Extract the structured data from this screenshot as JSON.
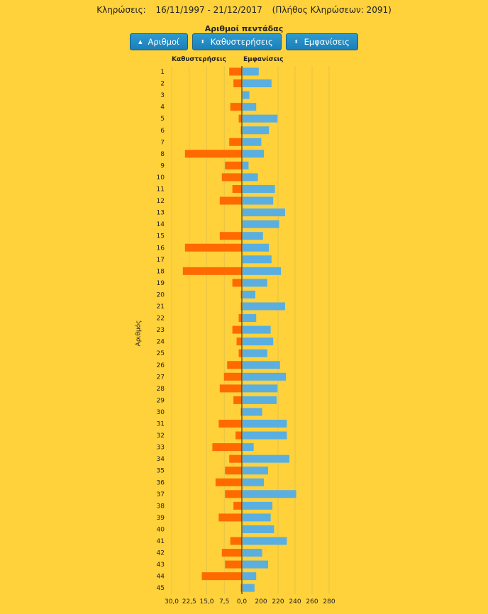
{
  "header": {
    "label": "Κληρώσεις:",
    "range": "16/11/1997 - 21/12/2017",
    "count": "(Πλήθος Κληρώσεων: 2091)"
  },
  "subtitle": "Αριθμοί πεντάδας",
  "buttons": [
    {
      "label": "Αριθμοί",
      "icon": "sort-up-icon"
    },
    {
      "label": "Καθυστερήσεις",
      "icon": "sort-both-icon"
    },
    {
      "label": "Εμφανίσεις",
      "icon": "sort-both-icon"
    }
  ],
  "colors": {
    "delay": "#FF6A00",
    "appearance": "#5AAFE0",
    "background": "#FFD13B"
  },
  "chart_data": {
    "type": "bar",
    "orientation": "horizontal",
    "ylabel": "Αριθμός",
    "series": [
      {
        "name": "Καθυστερήσεις",
        "values": [
          6,
          4,
          0,
          5.5,
          1.5,
          0.5,
          6,
          27,
          8,
          9.5,
          4.5,
          10.5,
          0,
          0,
          10.5,
          27,
          0,
          28,
          4.5,
          0.5,
          0.5,
          1.5,
          4.5,
          2.5,
          1.5,
          7,
          8.5,
          10.5,
          4,
          0.5,
          11,
          3,
          14,
          6,
          8,
          12.5,
          8,
          4,
          11,
          0,
          5.5,
          9.5,
          8,
          19,
          0.5
        ]
      },
      {
        "name": "Εμφανίσεις",
        "values": [
          219,
          234,
          208,
          216,
          241,
          231,
          222,
          225,
          207,
          218,
          238,
          236,
          250,
          243,
          224,
          231,
          234,
          245,
          229,
          215,
          250,
          216,
          233,
          236,
          229,
          244,
          251,
          241,
          240,
          223,
          252,
          252,
          213,
          255,
          230,
          225,
          263,
          235,
          233,
          237,
          252,
          223,
          230,
          216,
          214
        ]
      }
    ],
    "categories": [
      "1",
      "2",
      "3",
      "4",
      "5",
      "6",
      "7",
      "8",
      "9",
      "10",
      "11",
      "12",
      "13",
      "14",
      "15",
      "16",
      "17",
      "18",
      "19",
      "20",
      "21",
      "22",
      "23",
      "24",
      "25",
      "26",
      "27",
      "28",
      "29",
      "30",
      "31",
      "32",
      "33",
      "34",
      "35",
      "36",
      "37",
      "38",
      "39",
      "40",
      "41",
      "42",
      "43",
      "44",
      "45"
    ],
    "left_axis": {
      "ticks": [
        "30,0",
        "22,5",
        "15,0",
        "7,5",
        "0,0"
      ],
      "max": 30,
      "min": 0
    },
    "right_axis": {
      "ticks": [
        "200",
        "220",
        "240",
        "260",
        "280"
      ],
      "min": 200,
      "max": 280
    }
  },
  "col_labels": {
    "left": "Καθυστερήσεις",
    "right": "Εμφανίσεις"
  }
}
